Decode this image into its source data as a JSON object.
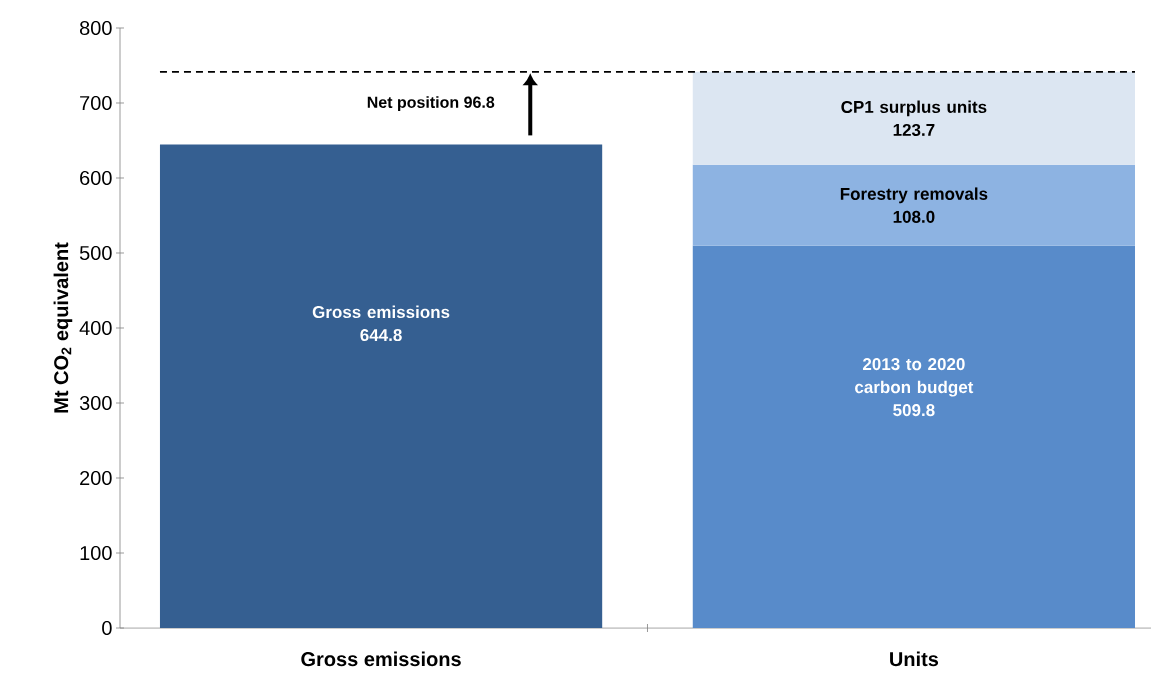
{
  "chart_data": {
    "type": "bar",
    "stacked": true,
    "ylabel": "Mt CO$_{2}$ equivalent",
    "categories": [
      "Gross emissions",
      "Units"
    ],
    "series": [
      {
        "name": "Gross emissions",
        "color": "#355f91",
        "values": [
          644.8,
          null
        ],
        "value_labels": [
          "644.8",
          null
        ]
      },
      {
        "name": "2013 to 2020 carbon budget",
        "color": "#588bca",
        "values": [
          null,
          509.8
        ],
        "value_labels": [
          null,
          "509.8"
        ]
      },
      {
        "name": "Forestry removals",
        "color": "#8db3e2",
        "values": [
          null,
          108.0
        ],
        "value_labels": [
          null,
          "108.0"
        ]
      },
      {
        "name": "CP1 surplus units",
        "color": "#dce6f2",
        "values": [
          null,
          123.7
        ],
        "value_labels": [
          null,
          "123.7"
        ]
      }
    ],
    "ylim": [
      0,
      800
    ],
    "yticks": [
      0,
      100,
      200,
      300,
      400,
      500,
      600,
      700,
      800
    ],
    "ref_lines": [
      {
        "axis": "y",
        "value": 741.5,
        "color": "#000000",
        "line_style": "dashed"
      }
    ],
    "annotations": [
      {
        "text": "Net position 96.8",
        "x": "Gross emissions",
        "y": 741.5
      }
    ],
    "grid": false
  }
}
